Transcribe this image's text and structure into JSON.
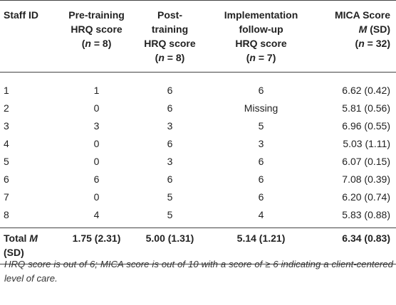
{
  "table": {
    "headers": [
      {
        "l1": "Staff ID",
        "l2": "",
        "l3": ""
      },
      {
        "l1": "Pre-training",
        "l2": "HRQ score",
        "l3": "(n = 8)",
        "n": "8"
      },
      {
        "l1": "Post-",
        "l2": "training",
        "l3": "HRQ score",
        "l4": "(n = 8)",
        "n": "8"
      },
      {
        "l1": "Implementation",
        "l2": "follow-up",
        "l3": "HRQ score",
        "l4": "(n = 7)",
        "n": "7"
      },
      {
        "l1": "MICA Score",
        "l2": "M (SD)",
        "l3": "(n = 32)",
        "n": "32"
      }
    ],
    "rows": [
      [
        "1",
        "1",
        "6",
        "6",
        "6.62 (0.42)"
      ],
      [
        "2",
        "0",
        "6",
        "Missing",
        "5.81 (0.56)"
      ],
      [
        "3",
        "3",
        "3",
        "5",
        "6.96 (0.55)"
      ],
      [
        "4",
        "0",
        "6",
        "3",
        "5.03 (1.11)"
      ],
      [
        "5",
        "0",
        "3",
        "6",
        "6.07 (0.15)"
      ],
      [
        "6",
        "6",
        "6",
        "6",
        "7.08 (0.39)"
      ],
      [
        "7",
        "0",
        "5",
        "6",
        "6.20 (0.74)"
      ],
      [
        "8",
        "4",
        "5",
        "4",
        "5.83 (0.88)"
      ]
    ],
    "total": {
      "label_a": "Total",
      "label_m": "M",
      "label_b": "(SD)",
      "values": [
        "1.75 (2.31)",
        "5.00 (1.31)",
        "5.14 (1.21)",
        "6.34 (0.83)"
      ]
    }
  },
  "note": "HRQ score is out of 6; MICA score is out of 10 with a score of ≥ 6 indicating a client-centered level of care."
}
